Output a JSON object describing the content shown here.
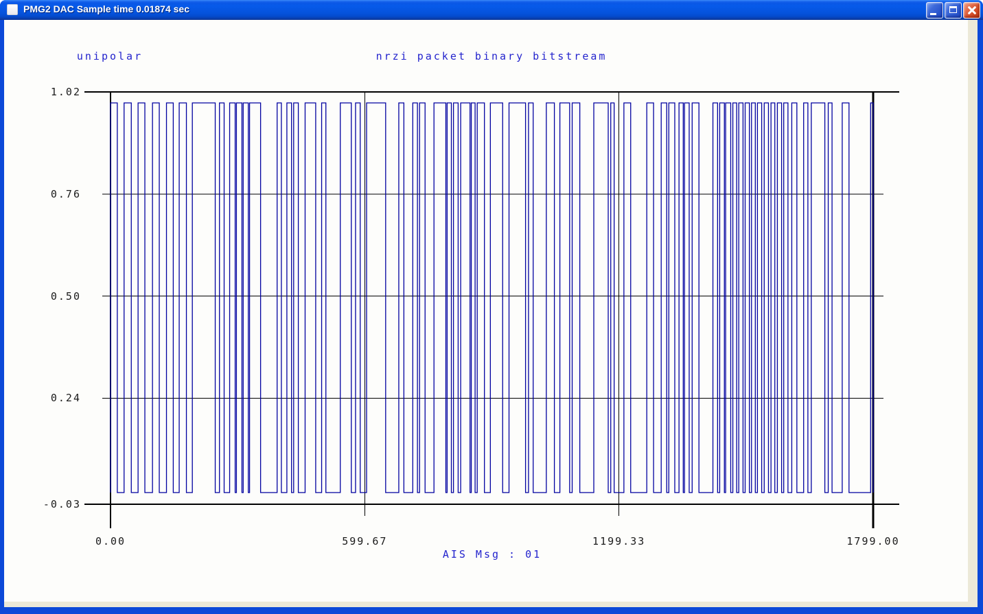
{
  "window": {
    "title": "PMG2 DAC Sample time 0.01874 sec",
    "controls": [
      {
        "id": "minimize",
        "label": "minimize"
      },
      {
        "id": "maximize",
        "label": "maximize"
      },
      {
        "id": "close",
        "label": "close"
      }
    ]
  },
  "plot": {
    "mode_label": "unipolar",
    "title": "nrzi packet binary bitstream",
    "message_label": "AIS Msg : 01",
    "caption_color": "#2323cd",
    "tick_color": "#1b1b1b",
    "axis_color": "#000000",
    "waveform_color": "#0000a0"
  },
  "chart_data": {
    "type": "line",
    "subtype": "square-wave-bitstream",
    "title": "nrzi packet binary bitstream",
    "mode": "unipolar",
    "xlabel": "AIS Msg : 01",
    "ylabel": "",
    "xlim": [
      0,
      1799
    ],
    "ylim": [
      -0.03,
      1.02
    ],
    "grid": true,
    "legend_position": "none",
    "x_ticks": [
      {
        "value": 0,
        "label": "0.00"
      },
      {
        "value": 599.67,
        "label": "599.67"
      },
      {
        "value": 1199.33,
        "label": "1199.33"
      },
      {
        "value": 1799,
        "label": "1799.00"
      }
    ],
    "y_ticks": [
      {
        "value": 1.02,
        "label": "1.02"
      },
      {
        "value": 0.76,
        "label": "0.76"
      },
      {
        "value": 0.5,
        "label": "0.50"
      },
      {
        "value": 0.24,
        "label": "0.24"
      },
      {
        "value": -0.03,
        "label": "-0.03"
      }
    ],
    "levels": {
      "high": 1.0,
      "low": 0.0
    },
    "high_intervals": [
      [
        0,
        16
      ],
      [
        32,
        49
      ],
      [
        65,
        81
      ],
      [
        99,
        115
      ],
      [
        132,
        148
      ],
      [
        162,
        179
      ],
      [
        193,
        247
      ],
      [
        257,
        268
      ],
      [
        281,
        294
      ],
      [
        297,
        310
      ],
      [
        313,
        325
      ],
      [
        328,
        354
      ],
      [
        393,
        403
      ],
      [
        416,
        427
      ],
      [
        432,
        443
      ],
      [
        459,
        484
      ],
      [
        498,
        508
      ],
      [
        542,
        568
      ],
      [
        578,
        589
      ],
      [
        604,
        649
      ],
      [
        680,
        692
      ],
      [
        713,
        724
      ],
      [
        729,
        742
      ],
      [
        763,
        791
      ],
      [
        794,
        804
      ],
      [
        809,
        820
      ],
      [
        826,
        848
      ],
      [
        851,
        860
      ],
      [
        865,
        882
      ],
      [
        896,
        925
      ],
      [
        940,
        979
      ],
      [
        986,
        997
      ],
      [
        1028,
        1047
      ],
      [
        1060,
        1083
      ],
      [
        1089,
        1107
      ],
      [
        1140,
        1174
      ],
      [
        1180,
        1188
      ],
      [
        1211,
        1227
      ],
      [
        1265,
        1281
      ],
      [
        1299,
        1312
      ],
      [
        1317,
        1331
      ],
      [
        1341,
        1351
      ],
      [
        1354,
        1365
      ],
      [
        1372,
        1388
      ],
      [
        1421,
        1432
      ],
      [
        1437,
        1448
      ],
      [
        1451,
        1463
      ],
      [
        1468,
        1477
      ],
      [
        1482,
        1492
      ],
      [
        1497,
        1507
      ],
      [
        1512,
        1521
      ],
      [
        1526,
        1536
      ],
      [
        1542,
        1552
      ],
      [
        1558,
        1567
      ],
      [
        1573,
        1583
      ],
      [
        1588,
        1598
      ],
      [
        1607,
        1619
      ],
      [
        1635,
        1645
      ],
      [
        1653,
        1685
      ],
      [
        1693,
        1702
      ],
      [
        1726,
        1742
      ],
      [
        1793,
        1799
      ]
    ]
  }
}
